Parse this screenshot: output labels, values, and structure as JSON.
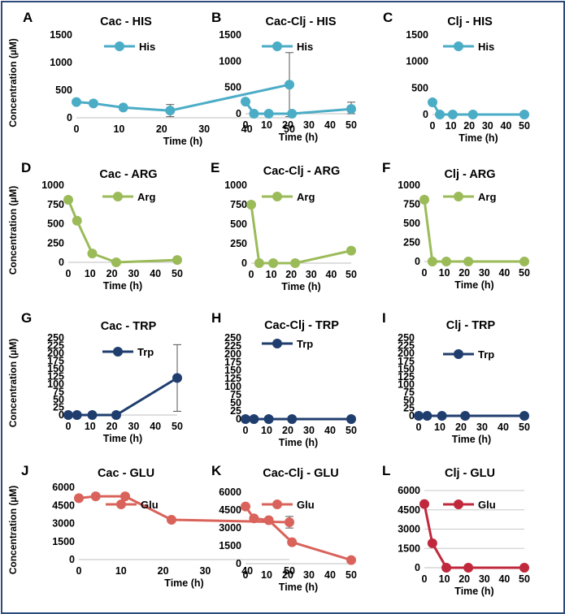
{
  "chart_data": [
    {
      "type": "line",
      "panel": "A",
      "title": "Cac - HIS",
      "legend": "His",
      "color": "#4bacc6",
      "ylim": [
        0,
        1500
      ],
      "yticks": [
        0,
        500,
        1000,
        1500
      ],
      "xticks": [
        0,
        10,
        20,
        30,
        40,
        50
      ],
      "xlabel": "Time (h)",
      "ylabel": "Concentration (µM)",
      "x": [
        0,
        4,
        11,
        22,
        50
      ],
      "values": [
        285,
        260,
        185,
        130,
        600
      ],
      "errors": [
        0,
        0,
        0,
        110,
        580
      ]
    },
    {
      "type": "line",
      "panel": "B",
      "title": "Cac-Clj - HIS",
      "legend": "His",
      "color": "#4bacc6",
      "ylim": [
        0,
        1500
      ],
      "yticks": [
        0,
        500,
        1000,
        1500
      ],
      "xticks": [
        0,
        10,
        20,
        30,
        40,
        50
      ],
      "xlabel": "Time (h)",
      "ylabel": "",
      "x": [
        0,
        4,
        11,
        22,
        50
      ],
      "values": [
        230,
        0,
        0,
        0,
        90
      ],
      "errors": [
        0,
        0,
        0,
        0,
        130
      ]
    },
    {
      "type": "line",
      "panel": "C",
      "title": "Clj - HIS",
      "legend": "His",
      "color": "#4bacc6",
      "ylim": [
        0,
        1500
      ],
      "yticks": [
        0,
        500,
        1000,
        1500
      ],
      "xticks": [
        0,
        10,
        20,
        30,
        40,
        50
      ],
      "xlabel": "Time (h)",
      "ylabel": "",
      "x": [
        0,
        4,
        11,
        22,
        50
      ],
      "values": [
        230,
        0,
        0,
        0,
        0
      ],
      "errors": [
        0,
        0,
        0,
        0,
        0
      ]
    },
    {
      "type": "line",
      "panel": "D",
      "title": "Cac - ARG",
      "legend": "Arg",
      "color": "#9bbb59",
      "ylim": [
        0,
        1000
      ],
      "yticks": [
        0,
        250,
        500,
        750,
        1000
      ],
      "xticks": [
        0,
        10,
        20,
        30,
        40,
        50
      ],
      "xlabel": "Time (h)",
      "ylabel": "Concentration (µM)",
      "x": [
        0,
        4,
        11,
        22,
        50
      ],
      "values": [
        810,
        540,
        115,
        0,
        30
      ],
      "errors": [
        0,
        0,
        0,
        0,
        30
      ]
    },
    {
      "type": "line",
      "panel": "E",
      "title": "Cac-Clj - ARG",
      "legend": "Arg",
      "color": "#9bbb59",
      "ylim": [
        0,
        1000
      ],
      "yticks": [
        0,
        250,
        500,
        750,
        1000
      ],
      "xticks": [
        0,
        10,
        20,
        30,
        40,
        50
      ],
      "xlabel": "Time (h)",
      "ylabel": "",
      "x": [
        0,
        4,
        11,
        22,
        50
      ],
      "values": [
        750,
        0,
        0,
        0,
        160
      ],
      "errors": [
        0,
        0,
        0,
        0,
        30
      ]
    },
    {
      "type": "line",
      "panel": "F",
      "title": "Clj - ARG",
      "legend": "Arg",
      "color": "#9bbb59",
      "ylim": [
        0,
        1000
      ],
      "yticks": [
        0,
        250,
        500,
        750,
        1000
      ],
      "xticks": [
        0,
        10,
        20,
        30,
        40,
        50
      ],
      "xlabel": "Time (h)",
      "ylabel": "",
      "x": [
        0,
        4,
        11,
        22,
        50
      ],
      "values": [
        810,
        0,
        0,
        0,
        0
      ],
      "errors": [
        0,
        0,
        0,
        0,
        0
      ]
    },
    {
      "type": "line",
      "panel": "G",
      "title": "Cac - TRP",
      "legend": "Trp",
      "color": "#1f3e6e",
      "ylim": [
        0,
        250
      ],
      "yticks": [
        0,
        25,
        50,
        75,
        100,
        125,
        150,
        175,
        200,
        225,
        250
      ],
      "xticks": [
        0,
        10,
        20,
        30,
        40,
        50
      ],
      "xlabel": "Time (h)",
      "ylabel": "Concentration (µM)",
      "x": [
        0,
        4,
        11,
        22,
        50
      ],
      "values": [
        0,
        0,
        0,
        0,
        120
      ],
      "errors": [
        0,
        0,
        0,
        0,
        108
      ]
    },
    {
      "type": "line",
      "panel": "H",
      "title": "Cac-Clj - TRP",
      "legend": "Trp",
      "color": "#1f3e6e",
      "ylim": [
        0,
        250
      ],
      "yticks": [
        0,
        25,
        50,
        75,
        100,
        125,
        150,
        175,
        200,
        225,
        250
      ],
      "xticks": [
        0,
        10,
        20,
        30,
        40,
        50
      ],
      "xlabel": "Time (h)",
      "ylabel": "",
      "x": [
        0,
        4,
        11,
        22,
        50
      ],
      "values": [
        0,
        0,
        0,
        0,
        0
      ],
      "errors": [
        0,
        0,
        0,
        0,
        0
      ]
    },
    {
      "type": "line",
      "panel": "I",
      "title": "Clj - TRP",
      "legend": "Trp",
      "color": "#1f3e6e",
      "ylim": [
        0,
        250
      ],
      "yticks": [
        0,
        25,
        50,
        75,
        100,
        125,
        150,
        175,
        200,
        225,
        250
      ],
      "xticks": [
        0,
        10,
        20,
        30,
        40,
        50
      ],
      "xlabel": "Time (h)",
      "ylabel": "",
      "x": [
        0,
        4,
        11,
        22,
        50
      ],
      "values": [
        0,
        0,
        0,
        0,
        0
      ],
      "errors": [
        0,
        0,
        0,
        0,
        0
      ]
    },
    {
      "type": "line",
      "panel": "J",
      "title": "Cac - GLU",
      "legend": "Glu",
      "color": "#d9635b",
      "ylim": [
        0,
        6000
      ],
      "yticks": [
        0,
        1500,
        3000,
        4500,
        6000
      ],
      "xticks": [
        0,
        10,
        20,
        30,
        40,
        50
      ],
      "xlabel": "Time (h)",
      "ylabel": "Concentration (µM)",
      "x": [
        0,
        4,
        11,
        22,
        50
      ],
      "values": [
        5100,
        5250,
        5250,
        3300,
        3100
      ],
      "errors": [
        0,
        0,
        0,
        0,
        480
      ]
    },
    {
      "type": "line",
      "panel": "K",
      "title": "Cac-Clj - GLU",
      "legend": "Glu",
      "color": "#d9635b",
      "ylim": [
        0,
        6000
      ],
      "yticks": [
        0,
        1500,
        3000,
        4500,
        6000
      ],
      "xticks": [
        0,
        10,
        20,
        30,
        40,
        50
      ],
      "xlabel": "Time (h)",
      "ylabel": "",
      "x": [
        0,
        4,
        11,
        22,
        50
      ],
      "values": [
        4800,
        3800,
        3650,
        1800,
        300
      ],
      "errors": [
        0,
        0,
        0,
        0,
        0
      ]
    },
    {
      "type": "line",
      "panel": "L",
      "title": "Clj - GLU",
      "legend": "Glu",
      "color": "#c0283c",
      "ylim": [
        0,
        6000
      ],
      "yticks": [
        0,
        1500,
        3000,
        4500,
        6000
      ],
      "xticks": [
        0,
        10,
        20,
        30,
        40,
        50
      ],
      "xlabel": "Time (h)",
      "ylabel": "",
      "x": [
        0,
        4,
        11,
        22,
        50
      ],
      "values": [
        4950,
        1900,
        0,
        0,
        0
      ],
      "errors": [
        0,
        0,
        0,
        0,
        0
      ],
      "grid": true
    }
  ]
}
